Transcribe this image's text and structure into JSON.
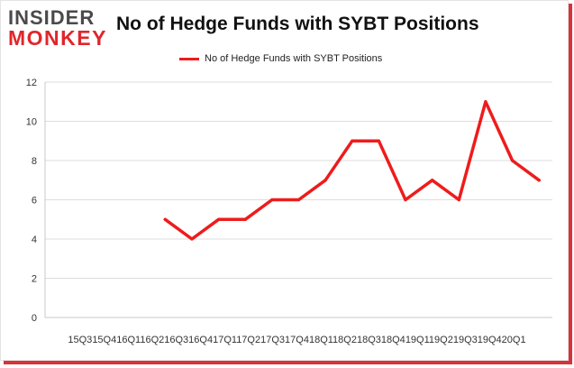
{
  "header": {
    "logo_line1": "INSIDER",
    "logo_line2": "MONKEY",
    "title": "No of Hedge Funds with SYBT Positions"
  },
  "colors": {
    "series": "#ee1c1c",
    "grid": "#dddddd",
    "axis": "#c8c8c8",
    "frame_shadow": "#d8323a"
  },
  "chart_data": {
    "type": "line",
    "title": "No of Hedge Funds with SYBT Positions",
    "xlabel": "",
    "ylabel": "",
    "x": [
      "15Q3",
      "15Q4",
      "16Q1",
      "16Q2",
      "16Q3",
      "16Q4",
      "17Q1",
      "17Q2",
      "17Q3",
      "17Q4",
      "18Q1",
      "18Q2",
      "18Q3",
      "18Q4",
      "19Q1",
      "19Q2",
      "19Q3",
      "19Q4",
      "20Q1"
    ],
    "series": [
      {
        "name": "No of Hedge Funds with SYBT Positions",
        "values": [
          null,
          null,
          null,
          null,
          5,
          4,
          5,
          5,
          6,
          6,
          7,
          9,
          9,
          6,
          7,
          6,
          11,
          8,
          7
        ]
      }
    ],
    "ylim": [
      0,
      12
    ],
    "yticks": [
      0,
      2,
      4,
      6,
      8,
      10,
      12
    ],
    "grid": "horizontal",
    "legend_position": "top-center"
  }
}
